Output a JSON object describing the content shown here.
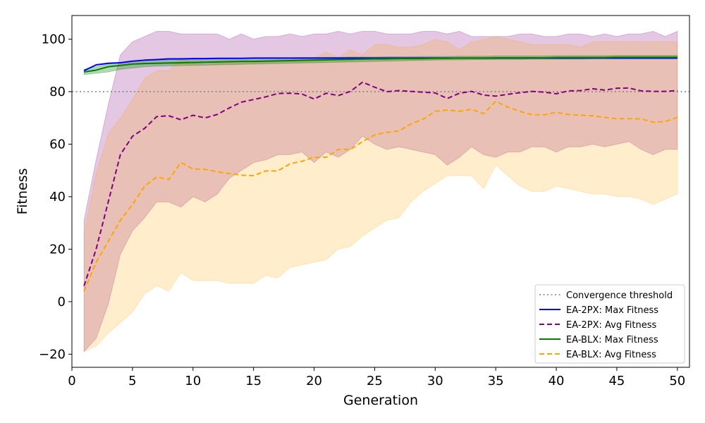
{
  "chart_data": {
    "type": "line",
    "xlabel": "Generation",
    "ylabel": "Fitness",
    "xlim": [
      0,
      51
    ],
    "ylim": [
      -25,
      109
    ],
    "xticks": [
      0,
      5,
      10,
      15,
      20,
      25,
      30,
      35,
      40,
      45,
      50
    ],
    "yticks": [
      -20,
      0,
      20,
      40,
      60,
      80,
      100
    ],
    "grid": false,
    "legend_position": "lower-right",
    "x": [
      1,
      2,
      3,
      4,
      5,
      6,
      7,
      8,
      9,
      10,
      11,
      12,
      13,
      14,
      15,
      16,
      17,
      18,
      19,
      20,
      21,
      22,
      23,
      24,
      25,
      26,
      27,
      28,
      29,
      30,
      31,
      32,
      33,
      34,
      35,
      36,
      37,
      38,
      39,
      40,
      41,
      42,
      43,
      44,
      45,
      46,
      47,
      48,
      49,
      50
    ],
    "reference_lines": [
      {
        "name": "Convergence threshold",
        "y": 80,
        "color": "#808080",
        "style": "dotted"
      }
    ],
    "bands": [
      {
        "series": "EA-2PX: Avg Fitness",
        "color": "#800080",
        "opacity": 0.22,
        "upper": [
          31,
          54,
          75,
          94,
          99,
          101,
          103,
          103,
          102,
          102,
          102,
          102,
          100,
          102,
          100,
          101,
          101,
          102,
          101,
          102,
          102,
          103,
          102,
          103,
          103,
          102,
          102,
          102,
          103,
          103,
          102,
          103,
          101,
          101,
          101,
          101,
          102,
          102,
          101,
          101,
          102,
          102,
          101,
          102,
          101,
          102,
          102,
          103,
          101,
          103
        ],
        "lower": [
          -19,
          -14,
          -1,
          18,
          27,
          32,
          38,
          38,
          36,
          40,
          38,
          41,
          47,
          50,
          53,
          54,
          56,
          56,
          57,
          53,
          57,
          55,
          58,
          63,
          60,
          58,
          59,
          58,
          57,
          56,
          52,
          55,
          59,
          56,
          55,
          57,
          57,
          59,
          59,
          57,
          59,
          59,
          60,
          59,
          60,
          61,
          58,
          56,
          58,
          58
        ]
      },
      {
        "series": "EA-BLX: Avg Fitness",
        "color": "#ffa500",
        "opacity": 0.2,
        "upper": [
          26,
          49,
          64,
          70,
          77,
          85,
          88,
          88,
          93,
          91,
          90,
          91,
          91,
          91,
          91,
          92,
          92,
          92,
          93,
          93,
          95,
          93,
          96,
          94,
          98,
          98,
          97,
          97,
          98,
          100,
          99,
          96,
          99,
          100,
          101,
          100,
          99,
          98,
          98,
          98,
          98,
          97,
          99,
          99,
          99,
          99,
          99,
          99,
          99,
          99
        ],
        "lower": [
          -19,
          -17,
          -12,
          -8,
          -4,
          3,
          6,
          4,
          11,
          8,
          8,
          8,
          7,
          7,
          7,
          10,
          9,
          13,
          14,
          15,
          16,
          20,
          21,
          25,
          28,
          31,
          32,
          38,
          42,
          45,
          48,
          48,
          48,
          43,
          52,
          48,
          44,
          42,
          42,
          44,
          43,
          42,
          41,
          41,
          40,
          40,
          39,
          37,
          39,
          41
        ]
      },
      {
        "series": "EA-BLX: Max Fitness",
        "color": "#008000",
        "opacity": 0.3,
        "upper": [
          88.5,
          89.5,
          90.5,
          91,
          91.5,
          91.8,
          92,
          92.2,
          92.3,
          92.4,
          92.5,
          92.6,
          92.6,
          92.7,
          92.8,
          92.8,
          92.9,
          92.9,
          93,
          93,
          93.1,
          93.1,
          93.2,
          93.2,
          93.2,
          93.3,
          93.3,
          93.3,
          93.4,
          93.4,
          93.4,
          93.5,
          93.5,
          93.5,
          93.6,
          93.6,
          93.6,
          93.6,
          93.6,
          93.7,
          93.7,
          93.7,
          93.7,
          93.7,
          93.8,
          93.8,
          93.8,
          93.8,
          93.8,
          93.8
        ],
        "lower": [
          86.5,
          87,
          87.5,
          88.5,
          89,
          89.5,
          89.7,
          89.8,
          89.9,
          90,
          90.1,
          90.2,
          90.3,
          90.4,
          90.5,
          90.6,
          90.7,
          90.8,
          90.9,
          91,
          91.1,
          91.2,
          91.3,
          91.4,
          91.5,
          91.6,
          91.7,
          91.8,
          91.9,
          92,
          92.1,
          92.1,
          92.2,
          92.2,
          92.3,
          92.3,
          92.3,
          92.4,
          92.4,
          92.4,
          92.4,
          92.4,
          92.5,
          92.5,
          92.5,
          92.5,
          92.5,
          92.5,
          92.5,
          92.5
        ]
      }
    ],
    "series": [
      {
        "name": "EA-2PX: Max Fitness",
        "color": "#0000ff",
        "style": "solid",
        "values": [
          88,
          90.2,
          90.8,
          91,
          91.6,
          92,
          92.2,
          92.5,
          92.5,
          92.6,
          92.6,
          92.7,
          92.7,
          92.7,
          92.8,
          92.8,
          92.8,
          92.8,
          92.8,
          92.8,
          92.8,
          92.8,
          92.8,
          92.8,
          92.8,
          92.8,
          92.8,
          92.8,
          92.8,
          92.8,
          92.8,
          92.8,
          92.8,
          92.8,
          92.8,
          92.8,
          92.8,
          92.8,
          92.8,
          92.8,
          92.8,
          92.8,
          92.8,
          92.8,
          92.8,
          92.8,
          92.8,
          92.8,
          92.8,
          92.8
        ]
      },
      {
        "name": "EA-2PX: Avg Fitness",
        "color": "#800080",
        "style": "dashed",
        "values": [
          6,
          20,
          38,
          56,
          63,
          66,
          70.5,
          70.8,
          69.3,
          71,
          70,
          71.3,
          73.8,
          76,
          77,
          78,
          79.3,
          79.4,
          79.1,
          77.2,
          79.4,
          78.5,
          80.1,
          83.6,
          81.7,
          80,
          80.4,
          80.1,
          79.8,
          79.5,
          77.4,
          79.4,
          80.1,
          78.7,
          78.3,
          79,
          79.6,
          80.1,
          79.8,
          79.2,
          80.3,
          80.4,
          81.1,
          80.6,
          81.3,
          81.4,
          80.3,
          80.1,
          80.1,
          80.4
        ]
      },
      {
        "name": "EA-BLX: Max Fitness",
        "color": "#008000",
        "style": "solid",
        "values": [
          87.5,
          88.2,
          89.5,
          90,
          90.5,
          90.7,
          90.8,
          90.9,
          91,
          91.1,
          91.2,
          91.3,
          91.4,
          91.5,
          91.5,
          91.6,
          91.7,
          91.8,
          91.9,
          92,
          92.1,
          92.2,
          92.3,
          92.4,
          92.5,
          92.5,
          92.6,
          92.6,
          92.6,
          92.7,
          92.7,
          92.8,
          92.8,
          92.8,
          92.9,
          92.9,
          92.9,
          92.9,
          92.9,
          93,
          93,
          93,
          93,
          93,
          93.1,
          93.1,
          93.1,
          93.1,
          93.1,
          93.1
        ]
      },
      {
        "name": "EA-BLX: Avg Fitness",
        "color": "#ffa500",
        "style": "dashed",
        "values": [
          4,
          15,
          23,
          31,
          37,
          44,
          47.5,
          46.5,
          53,
          50.5,
          50.4,
          49.5,
          48.8,
          48.2,
          48,
          49.8,
          49.8,
          52.5,
          53.5,
          55,
          55,
          58,
          58,
          61,
          63.5,
          64.5,
          65,
          67.7,
          69.5,
          72.5,
          73,
          72.5,
          73.3,
          71.6,
          76.3,
          74.1,
          72.5,
          71.2,
          71.2,
          72.1,
          71.3,
          71,
          70.8,
          70.2,
          69.7,
          69.7,
          69.6,
          68.4,
          68.6,
          70.2
        ]
      }
    ],
    "legend": [
      {
        "label": "Convergence threshold",
        "color": "#808080",
        "style": "dotted"
      },
      {
        "label": "EA-2PX: Max Fitness",
        "color": "#0000ff",
        "style": "solid"
      },
      {
        "label": "EA-2PX: Avg Fitness",
        "color": "#800080",
        "style": "dashed"
      },
      {
        "label": "EA-BLX: Max Fitness",
        "color": "#008000",
        "style": "solid"
      },
      {
        "label": "EA-BLX: Avg Fitness",
        "color": "#ffa500",
        "style": "dashed"
      }
    ]
  }
}
